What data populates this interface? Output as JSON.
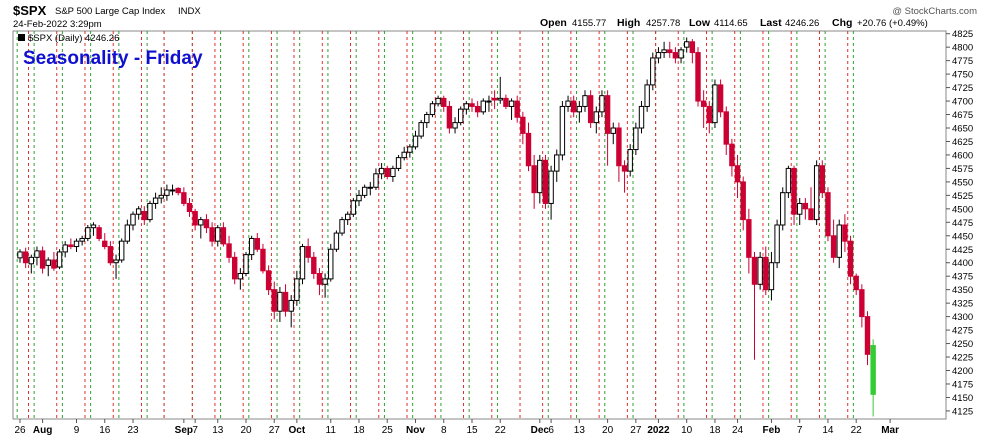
{
  "header": {
    "symbol": "$SPX",
    "name": "S&P 500 Large Cap Index",
    "exchange": "INDX",
    "datetime": "24-Feb-2022 3:29pm",
    "watermark": "@ StockCharts.com",
    "quote_labels": [
      "Open",
      "High",
      "Low",
      "Last",
      "Chg"
    ],
    "quote_values": [
      "4155.77",
      "4257.78",
      "4114.65",
      "4246.26",
      "+20.76 (+0.49%)"
    ]
  },
  "legend": {
    "swatch_color": "#000000",
    "text": "$SPX (Daily) 4246.26"
  },
  "overlay_title": {
    "text": "Seasonality - Friday",
    "color": "#1010d0"
  },
  "chart_data": {
    "type": "candlestick",
    "title": "Seasonality - Friday",
    "series_label": "$SPX (Daily) 4246.26",
    "ylim": [
      4110,
      4830
    ],
    "y_ticks": [
      4125,
      4150,
      4175,
      4200,
      4225,
      4250,
      4275,
      4300,
      4325,
      4350,
      4375,
      4400,
      4425,
      4450,
      4475,
      4500,
      4525,
      4550,
      4575,
      4600,
      4625,
      4650,
      4675,
      4700,
      4725,
      4750,
      4775,
      4800,
      4825
    ],
    "x_ticks": [
      {
        "label": "26",
        "bar": 0
      },
      {
        "label": "Aug",
        "bar": 4,
        "bold": true
      },
      {
        "label": "9",
        "bar": 10
      },
      {
        "label": "16",
        "bar": 15
      },
      {
        "label": "23",
        "bar": 20
      },
      {
        "label": "Sep",
        "bar": 29,
        "bold": true
      },
      {
        "label": "7",
        "bar": 31
      },
      {
        "label": "13",
        "bar": 35
      },
      {
        "label": "20",
        "bar": 40
      },
      {
        "label": "27",
        "bar": 45
      },
      {
        "label": "Oct",
        "bar": 49,
        "bold": true
      },
      {
        "label": "11",
        "bar": 55
      },
      {
        "label": "18",
        "bar": 60
      },
      {
        "label": "25",
        "bar": 65
      },
      {
        "label": "Nov",
        "bar": 70,
        "bold": true
      },
      {
        "label": "8",
        "bar": 75
      },
      {
        "label": "15",
        "bar": 80
      },
      {
        "label": "22",
        "bar": 85
      },
      {
        "label": "Dec",
        "bar": 92,
        "bold": true
      },
      {
        "label": "6",
        "bar": 94
      },
      {
        "label": "13",
        "bar": 99
      },
      {
        "label": "20",
        "bar": 104
      },
      {
        "label": "27",
        "bar": 109
      },
      {
        "label": "2022",
        "bar": 113,
        "bold": true
      },
      {
        "label": "10",
        "bar": 118
      },
      {
        "label": "18",
        "bar": 123
      },
      {
        "label": "24",
        "bar": 127
      },
      {
        "label": "Feb",
        "bar": 133,
        "bold": true
      },
      {
        "label": "7",
        "bar": 138
      },
      {
        "label": "14",
        "bar": 143
      },
      {
        "label": "22",
        "bar": 148
      },
      {
        "label": "Mar",
        "bar": 154,
        "bold": true
      }
    ],
    "friday_lines_red": [
      1,
      6,
      11,
      16,
      21,
      25,
      30,
      34,
      39,
      44,
      48,
      53,
      58,
      63,
      68,
      73,
      78,
      83,
      88,
      92,
      97,
      102,
      107,
      112,
      116,
      121,
      126,
      131,
      136,
      141,
      146
    ],
    "monday_lines_green": [
      0,
      3,
      8,
      13,
      18,
      23,
      26,
      31,
      36,
      41,
      46,
      50,
      55,
      60,
      65,
      70,
      75,
      80,
      85,
      89,
      94,
      99,
      104,
      109,
      113,
      118,
      123,
      128,
      133,
      138,
      143,
      148
    ],
    "colors": {
      "up": "#000000",
      "up_fill": "#ffffff",
      "down": "#cc0033",
      "highlight": "#33cc33",
      "grid_red": "#e03030",
      "grid_green": "#30a030"
    },
    "bars": [
      [
        4409,
        4425,
        4400,
        4420
      ],
      [
        4420,
        4428,
        4390,
        4400
      ],
      [
        4398,
        4415,
        4380,
        4410
      ],
      [
        4410,
        4430,
        4395,
        4422
      ],
      [
        4422,
        4430,
        4380,
        4390
      ],
      [
        4395,
        4410,
        4375,
        4405
      ],
      [
        4405,
        4420,
        4385,
        4390
      ],
      [
        4392,
        4425,
        4388,
        4420
      ],
      [
        4420,
        4440,
        4410,
        4433
      ],
      [
        4433,
        4445,
        4425,
        4430
      ],
      [
        4430,
        4445,
        4420,
        4440
      ],
      [
        4440,
        4450,
        4432,
        4445
      ],
      [
        4445,
        4470,
        4440,
        4465
      ],
      [
        4465,
        4475,
        4450,
        4470
      ],
      [
        4465,
        4470,
        4440,
        4445
      ],
      [
        4440,
        4455,
        4425,
        4430
      ],
      [
        4430,
        4440,
        4395,
        4400
      ],
      [
        4400,
        4415,
        4370,
        4405
      ],
      [
        4405,
        4445,
        4400,
        4440
      ],
      [
        4440,
        4480,
        4435,
        4470
      ],
      [
        4470,
        4495,
        4460,
        4490
      ],
      [
        4490,
        4505,
        4480,
        4500
      ],
      [
        4495,
        4505,
        4470,
        4480
      ],
      [
        4480,
        4515,
        4475,
        4510
      ],
      [
        4510,
        4530,
        4500,
        4520
      ],
      [
        4520,
        4540,
        4510,
        4525
      ],
      [
        4525,
        4545,
        4515,
        4535
      ],
      [
        4535,
        4545,
        4525,
        4535
      ],
      [
        4538,
        4540,
        4525,
        4530
      ],
      [
        4530,
        4540,
        4505,
        4510
      ],
      [
        4510,
        4520,
        4485,
        4495
      ],
      [
        4495,
        4500,
        4460,
        4470
      ],
      [
        4470,
        4485,
        4445,
        4480
      ],
      [
        4480,
        4490,
        4455,
        4465
      ],
      [
        4465,
        4475,
        4430,
        4440
      ],
      [
        4440,
        4470,
        4430,
        4465
      ],
      [
        4465,
        4475,
        4430,
        4435
      ],
      [
        4435,
        4450,
        4400,
        4410
      ],
      [
        4410,
        4420,
        4360,
        4370
      ],
      [
        4370,
        4390,
        4350,
        4380
      ],
      [
        4380,
        4420,
        4375,
        4415
      ],
      [
        4415,
        4450,
        4405,
        4445
      ],
      [
        4445,
        4455,
        4420,
        4425
      ],
      [
        4425,
        4435,
        4380,
        4385
      ],
      [
        4385,
        4395,
        4340,
        4350
      ],
      [
        4350,
        4365,
        4295,
        4310
      ],
      [
        4310,
        4355,
        4290,
        4345
      ],
      [
        4345,
        4360,
        4300,
        4310
      ],
      [
        4310,
        4340,
        4280,
        4330
      ],
      [
        4330,
        4385,
        4320,
        4370
      ],
      [
        4370,
        4435,
        4360,
        4430
      ],
      [
        4430,
        4445,
        4400,
        4410
      ],
      [
        4410,
        4420,
        4370,
        4380
      ],
      [
        4380,
        4390,
        4340,
        4360
      ],
      [
        4360,
        4380,
        4335,
        4370
      ],
      [
        4370,
        4435,
        4365,
        4425
      ],
      [
        4425,
        4460,
        4420,
        4455
      ],
      [
        4455,
        4485,
        4450,
        4480
      ],
      [
        4480,
        4495,
        4470,
        4490
      ],
      [
        4490,
        4520,
        4485,
        4515
      ],
      [
        4515,
        4535,
        4505,
        4525
      ],
      [
        4525,
        4545,
        4520,
        4540
      ],
      [
        4540,
        4550,
        4525,
        4540
      ],
      [
        4540,
        4575,
        4535,
        4565
      ],
      [
        4565,
        4585,
        4555,
        4575
      ],
      [
        4575,
        4580,
        4555,
        4560
      ],
      [
        4560,
        4580,
        4550,
        4575
      ],
      [
        4575,
        4600,
        4570,
        4595
      ],
      [
        4595,
        4615,
        4590,
        4605
      ],
      [
        4605,
        4620,
        4595,
        4615
      ],
      [
        4615,
        4645,
        4610,
        4635
      ],
      [
        4635,
        4665,
        4630,
        4660
      ],
      [
        4660,
        4680,
        4650,
        4675
      ],
      [
        4675,
        4700,
        4670,
        4695
      ],
      [
        4695,
        4710,
        4690,
        4705
      ],
      [
        4705,
        4710,
        4680,
        4690
      ],
      [
        4690,
        4700,
        4640,
        4650
      ],
      [
        4650,
        4670,
        4640,
        4660
      ],
      [
        4660,
        4690,
        4655,
        4685
      ],
      [
        4685,
        4700,
        4675,
        4695
      ],
      [
        4695,
        4705,
        4680,
        4690
      ],
      [
        4690,
        4700,
        4670,
        4680
      ],
      [
        4680,
        4705,
        4675,
        4700
      ],
      [
        4700,
        4710,
        4680,
        4700
      ],
      [
        4705,
        4720,
        4685,
        4702
      ],
      [
        4702,
        4745,
        4695,
        4705
      ],
      [
        4705,
        4712,
        4685,
        4690
      ],
      [
        4690,
        4705,
        4665,
        4700
      ],
      [
        4700,
        4710,
        4660,
        4670
      ],
      [
        4670,
        4680,
        4620,
        4640
      ],
      [
        4640,
        4660,
        4570,
        4580
      ],
      [
        4580,
        4600,
        4500,
        4530
      ],
      [
        4530,
        4600,
        4510,
        4590
      ],
      [
        4590,
        4600,
        4500,
        4510
      ],
      [
        4510,
        4580,
        4480,
        4570
      ],
      [
        4570,
        4610,
        4550,
        4600
      ],
      [
        4600,
        4700,
        4590,
        4690
      ],
      [
        4690,
        4710,
        4680,
        4700
      ],
      [
        4700,
        4710,
        4670,
        4680
      ],
      [
        4680,
        4700,
        4660,
        4690
      ],
      [
        4690,
        4720,
        4680,
        4710
      ],
      [
        4710,
        4720,
        4650,
        4660
      ],
      [
        4660,
        4690,
        4640,
        4680
      ],
      [
        4680,
        4720,
        4670,
        4710
      ],
      [
        4710,
        4720,
        4580,
        4640
      ],
      [
        4640,
        4660,
        4620,
        4650
      ],
      [
        4650,
        4660,
        4550,
        4580
      ],
      [
        4580,
        4590,
        4530,
        4570
      ],
      [
        4570,
        4620,
        4560,
        4610
      ],
      [
        4610,
        4660,
        4600,
        4650
      ],
      [
        4650,
        4700,
        4640,
        4690
      ],
      [
        4690,
        4740,
        4680,
        4730
      ],
      [
        4730,
        4790,
        4720,
        4780
      ],
      [
        4780,
        4800,
        4770,
        4790
      ],
      [
        4790,
        4810,
        4780,
        4795
      ],
      [
        4795,
        4810,
        4780,
        4790
      ],
      [
        4790,
        4800,
        4770,
        4780
      ],
      [
        4780,
        4800,
        4770,
        4795
      ],
      [
        4800,
        4818,
        4790,
        4810
      ],
      [
        4810,
        4815,
        4770,
        4790
      ],
      [
        4790,
        4800,
        4690,
        4700
      ],
      [
        4700,
        4720,
        4650,
        4690
      ],
      [
        4690,
        4700,
        4640,
        4660
      ],
      [
        4660,
        4740,
        4650,
        4730
      ],
      [
        4730,
        4740,
        4670,
        4680
      ],
      [
        4680,
        4690,
        4600,
        4620
      ],
      [
        4620,
        4630,
        4560,
        4580
      ],
      [
        4580,
        4600,
        4520,
        4550
      ],
      [
        4550,
        4560,
        4460,
        4480
      ],
      [
        4480,
        4500,
        4380,
        4410
      ],
      [
        4410,
        4420,
        4220,
        4360
      ],
      [
        4360,
        4420,
        4350,
        4410
      ],
      [
        4410,
        4430,
        4340,
        4350
      ],
      [
        4350,
        4420,
        4330,
        4400
      ],
      [
        4400,
        4480,
        4390,
        4470
      ],
      [
        4470,
        4540,
        4460,
        4530
      ],
      [
        4530,
        4580,
        4520,
        4575
      ],
      [
        4575,
        4580,
        4470,
        4490
      ],
      [
        4490,
        4520,
        4470,
        4510
      ],
      [
        4510,
        4520,
        4480,
        4500
      ],
      [
        4500,
        4540,
        4480,
        4480
      ],
      [
        4480,
        4590,
        4470,
        4580
      ],
      [
        4580,
        4590,
        4520,
        4530
      ],
      [
        4530,
        4540,
        4440,
        4450
      ],
      [
        4450,
        4480,
        4400,
        4410
      ],
      [
        4410,
        4480,
        4390,
        4470
      ],
      [
        4470,
        4490,
        4420,
        4440
      ],
      [
        4440,
        4450,
        4360,
        4375
      ],
      [
        4375,
        4380,
        4340,
        4350
      ],
      [
        4350,
        4360,
        4280,
        4300
      ],
      [
        4300,
        4310,
        4210,
        4230
      ],
      [
        4155.77,
        4257.78,
        4114.65,
        4246.26
      ]
    ]
  }
}
